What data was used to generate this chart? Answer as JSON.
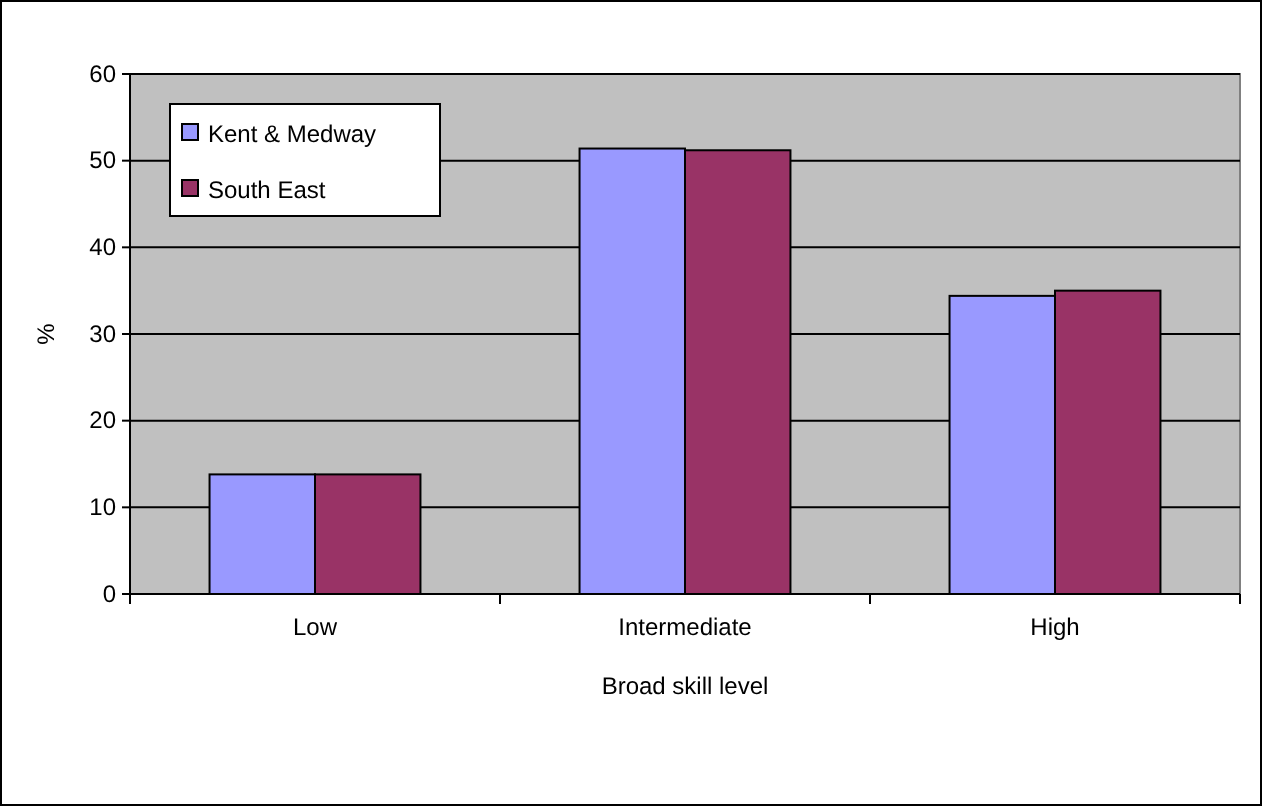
{
  "chart_data": {
    "type": "bar",
    "xlabel": "Broad skill level",
    "ylabel": "%",
    "categories": [
      "Low",
      "Intermediate",
      "High"
    ],
    "series": [
      {
        "name": "Kent & Medway",
        "color": "#9999ff",
        "values": [
          13.8,
          51.4,
          34.4
        ]
      },
      {
        "name": "South East",
        "color": "#993366",
        "values": [
          13.8,
          51.2,
          35.0
        ]
      }
    ],
    "ylim": [
      0,
      60
    ],
    "yticks": [
      0,
      10,
      20,
      30,
      40,
      50,
      60
    ],
    "grid": "y",
    "legend": "top left"
  }
}
